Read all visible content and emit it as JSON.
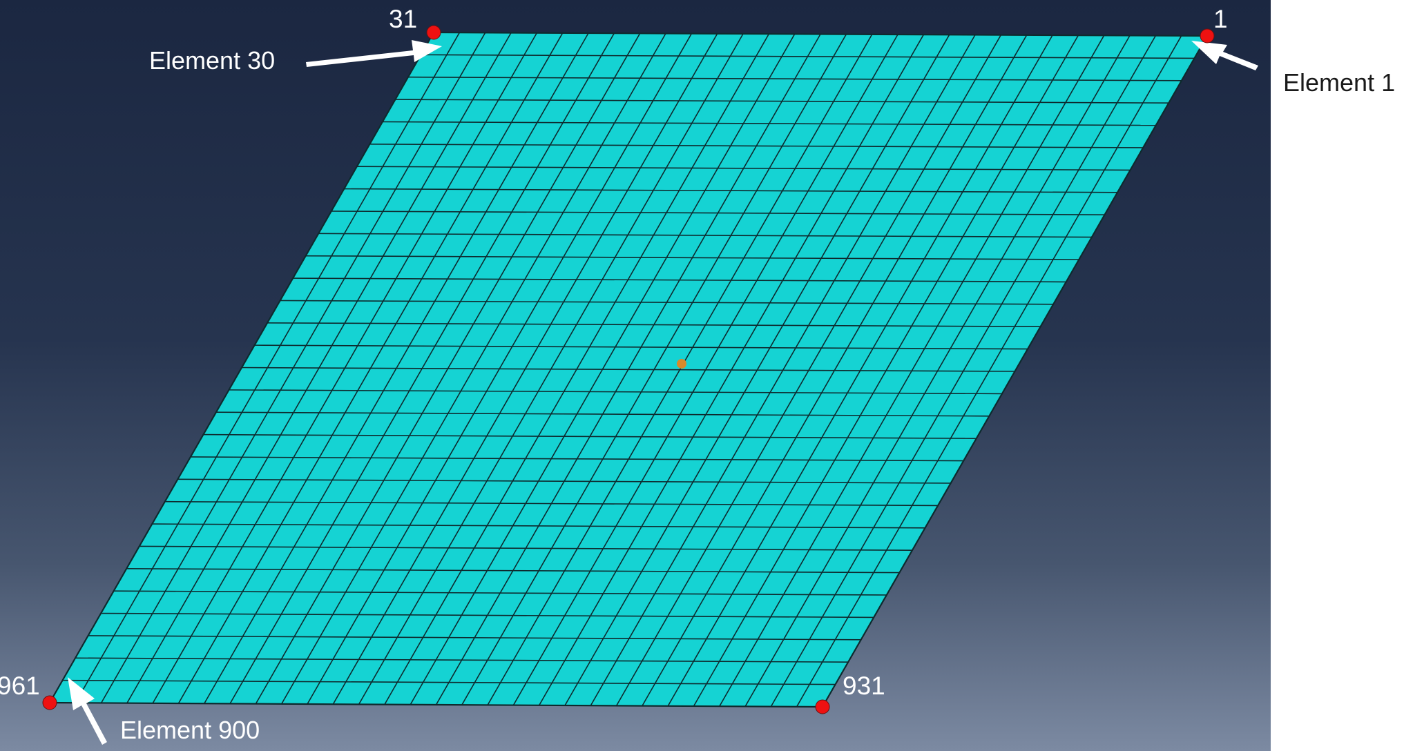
{
  "mesh": {
    "element_color": "#15d3d3",
    "edge_color": "#0e2a2e",
    "divisions_u": 30,
    "divisions_v": 30,
    "center_marker_color": "#d88a2a"
  },
  "nodes": [
    {
      "id": "node-31",
      "label": "31"
    },
    {
      "id": "node-1",
      "label": "1"
    },
    {
      "id": "node-961",
      "label": "961"
    },
    {
      "id": "node-931",
      "label": "931"
    }
  ],
  "annotations": [
    {
      "id": "element-30",
      "label": "Element 30"
    },
    {
      "id": "element-1",
      "label": "Element 1"
    },
    {
      "id": "element-900",
      "label": "Element 900"
    }
  ],
  "colors": {
    "node_marker": "#ee1111",
    "arrow": "#ffffff"
  }
}
